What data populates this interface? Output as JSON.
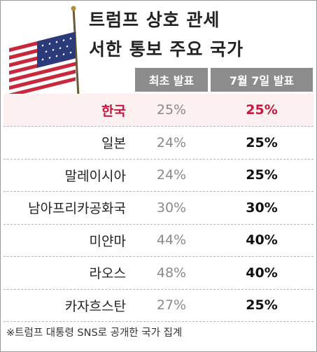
{
  "header": {
    "title": [
      "트럼프 상호 관세",
      "서한 통보 주요 국가"
    ]
  },
  "table": {
    "columns": [
      "최초 발표",
      "7월 7일 발표"
    ],
    "rows": [
      [
        "한국",
        "25%",
        "25%"
      ],
      [
        "일본",
        "24%",
        "25%"
      ],
      [
        "말레이시아",
        "24%",
        "25%"
      ],
      [
        "남아프리카공화국",
        "30%",
        "30%"
      ],
      [
        "미얀마",
        "44%",
        "40%"
      ],
      [
        "라오스",
        "48%",
        "40%"
      ],
      [
        "카자흐스탄",
        "27%",
        "25%"
      ]
    ]
  },
  "footnote": "※트럼프 대통령 SNS로 공개한 국가 집계"
}
